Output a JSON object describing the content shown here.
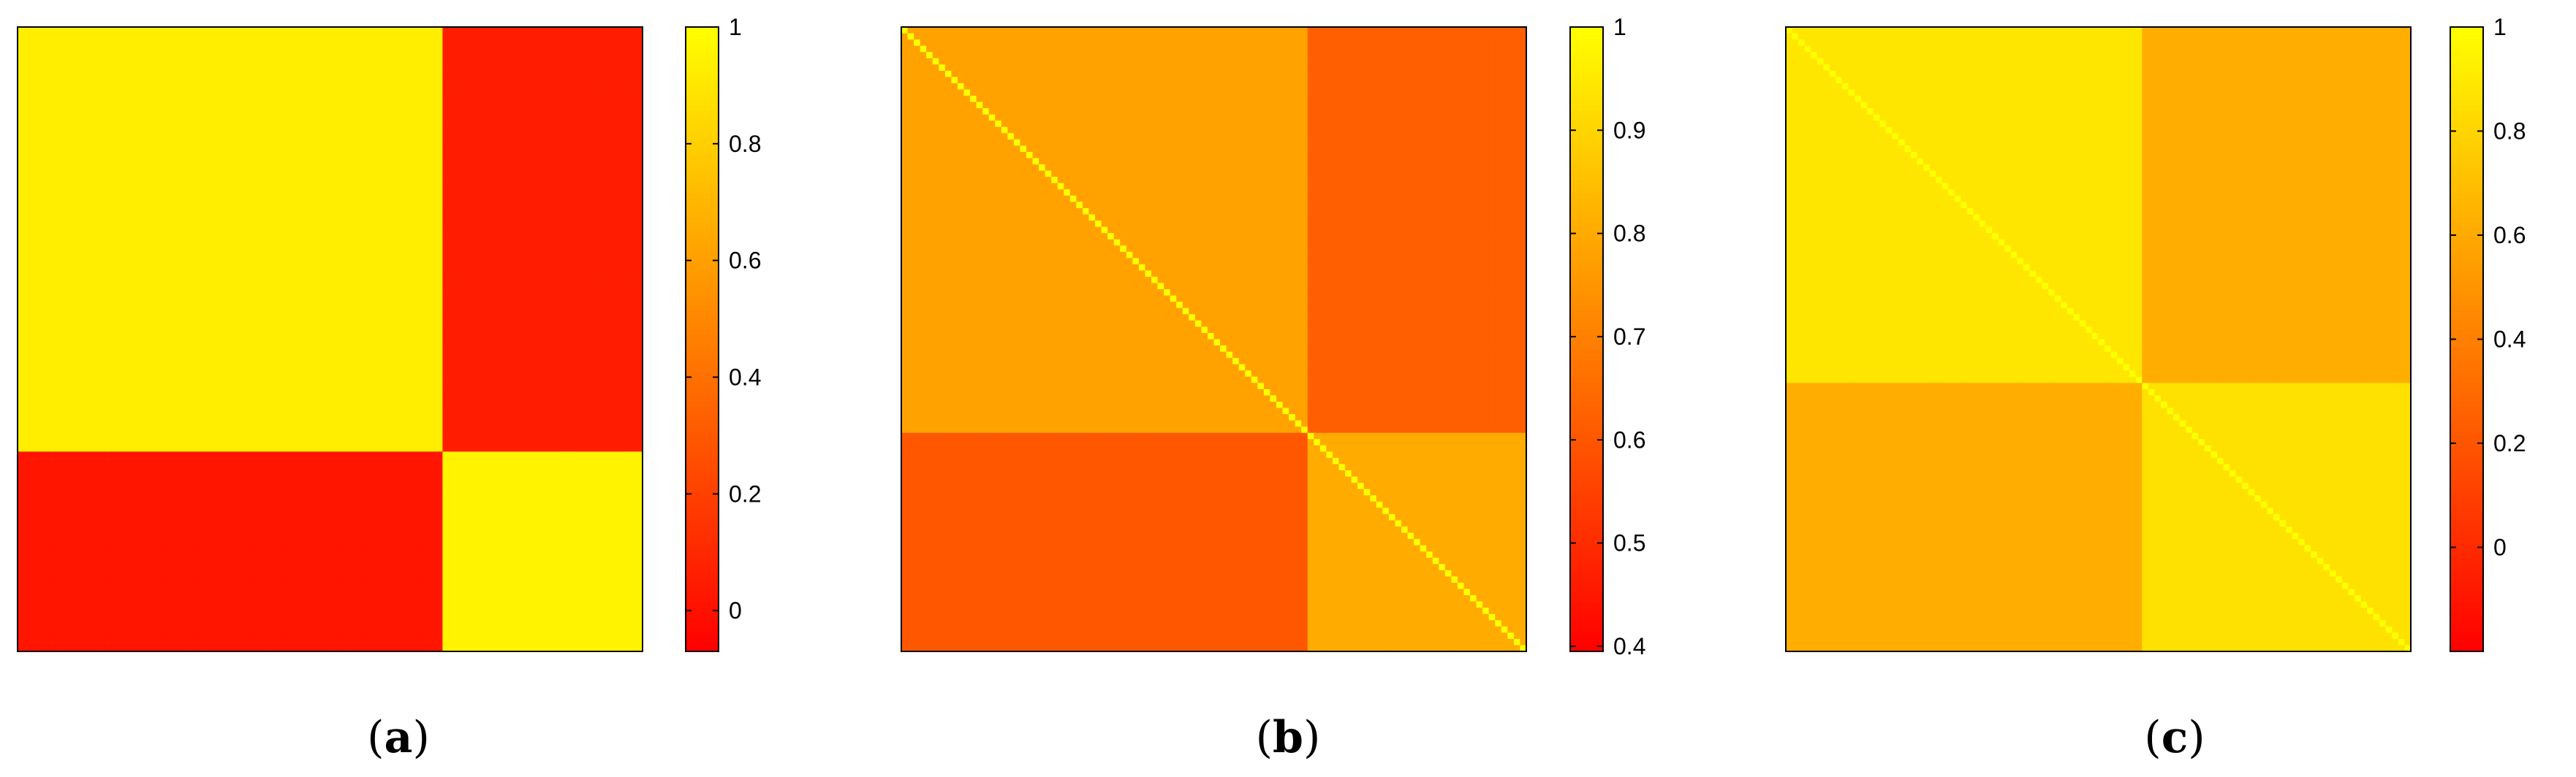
{
  "figure": {
    "panels": [
      {
        "label": "(a)",
        "label_letter": "a"
      },
      {
        "label": "(b)",
        "label_letter": "b"
      },
      {
        "label": "(c)",
        "label_letter": "c"
      }
    ]
  },
  "chart_data": [
    {
      "type": "heatmap",
      "title": "",
      "xlabel": "",
      "ylabel": "",
      "colormap": [
        "#ff0000",
        "#ffff00"
      ],
      "colorbar": {
        "range": [
          -0.07,
          1.0
        ],
        "ticks": [
          0,
          0.2,
          0.4,
          0.6,
          0.8,
          1
        ],
        "tick_labels": [
          "0",
          "0.2",
          "0.4",
          "0.6",
          "0.8",
          "1"
        ]
      },
      "grid_size": 100,
      "blocks": [
        {
          "rows": [
            0,
            68
          ],
          "cols": [
            0,
            68
          ],
          "value": 0.93
        },
        {
          "rows": [
            0,
            68
          ],
          "cols": [
            68,
            100
          ],
          "value": 0.05
        },
        {
          "rows": [
            68,
            100
          ],
          "cols": [
            0,
            68
          ],
          "value": 0.02
        },
        {
          "rows": [
            68,
            100
          ],
          "cols": [
            68,
            100
          ],
          "value": 0.95
        }
      ]
    },
    {
      "type": "heatmap",
      "title": "",
      "xlabel": "",
      "ylabel": "",
      "colormap": [
        "#ff0000",
        "#ffff00"
      ],
      "colorbar": {
        "range": [
          0.395,
          1.0
        ],
        "ticks": [
          0.4,
          0.5,
          0.6,
          0.7,
          0.8,
          0.9,
          1
        ],
        "tick_labels": [
          "0.4",
          "0.5",
          "0.6",
          "0.7",
          "0.8",
          "0.9",
          "1"
        ]
      },
      "grid_size": 100,
      "blocks": [
        {
          "rows": [
            0,
            65
          ],
          "cols": [
            0,
            65
          ],
          "value": 0.78
        },
        {
          "rows": [
            0,
            65
          ],
          "cols": [
            65,
            100
          ],
          "value": 0.62
        },
        {
          "rows": [
            65,
            100
          ],
          "cols": [
            0,
            65
          ],
          "value": 0.6
        },
        {
          "rows": [
            65,
            100
          ],
          "cols": [
            65,
            100
          ],
          "value": 0.8
        }
      ],
      "diagonal": 1.0
    },
    {
      "type": "heatmap",
      "title": "",
      "xlabel": "",
      "ylabel": "",
      "colormap": [
        "#ff0000",
        "#ffff00"
      ],
      "colorbar": {
        "range": [
          -0.2,
          1.0
        ],
        "ticks": [
          0,
          0.2,
          0.4,
          0.6,
          0.8,
          1
        ],
        "tick_labels": [
          "0",
          "0.2",
          "0.4",
          "0.6",
          "0.8",
          "1"
        ]
      },
      "grid_size": 100,
      "blocks": [
        {
          "rows": [
            0,
            57
          ],
          "cols": [
            0,
            57
          ],
          "value": 0.88
        },
        {
          "rows": [
            0,
            57
          ],
          "cols": [
            57,
            100
          ],
          "value": 0.62
        },
        {
          "rows": [
            57,
            100
          ],
          "cols": [
            0,
            57
          ],
          "value": 0.62
        },
        {
          "rows": [
            57,
            100
          ],
          "cols": [
            57,
            100
          ],
          "value": 0.86
        }
      ],
      "diagonal": 1.0
    }
  ]
}
